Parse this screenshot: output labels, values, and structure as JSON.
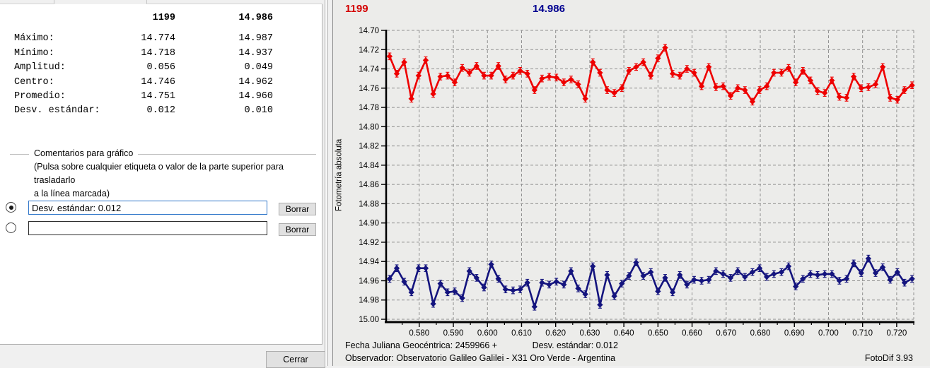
{
  "stats_panel": {
    "header": {
      "col1": "1199",
      "col2": "14.986"
    },
    "rows": [
      {
        "label": "Máximo:",
        "v1": "14.774",
        "v2": "14.987"
      },
      {
        "label": "Mínimo:",
        "v1": "14.718",
        "v2": "14.937"
      },
      {
        "label": "Amplitud:",
        "v1": "0.056",
        "v2": "0.049"
      },
      {
        "label": "Centro:",
        "v1": "14.746",
        "v2": "14.962"
      },
      {
        "label": "Promedio:",
        "v1": "14.751",
        "v2": "14.960"
      },
      {
        "label": "Desv. estándar:",
        "v1": "0.012",
        "v2": "0.010"
      }
    ],
    "comments_group": {
      "title": "Comentarios para gráfico",
      "hint_line1": "(Pulsa sobre cualquier etiqueta o valor de la parte superior para trasladarlo",
      "hint_line2": "a la línea marcada)",
      "row1": {
        "value": "Desv. estándar: 0.012",
        "button": "Borrar",
        "selected": true
      },
      "row2": {
        "value": "",
        "button": "Borrar",
        "selected": false
      }
    },
    "close_button": "Cerrar"
  },
  "chart_data": {
    "type": "line",
    "title_left": "1199",
    "title_center": "14.986",
    "ylabel": "Fotometría absoluta",
    "y_axis_inverted": true,
    "grid": true,
    "grid_color": "#909090",
    "xlim": [
      0.5705,
      0.725
    ],
    "ylim": [
      14.7,
      15.0
    ],
    "x_ticks": [
      0.58,
      0.59,
      0.6,
      0.61,
      0.62,
      0.63,
      0.64,
      0.65,
      0.66,
      0.67,
      0.68,
      0.69,
      0.7,
      0.71,
      0.72
    ],
    "x_tick_labels": [
      "0.580",
      "0.590",
      "0.600",
      "0.610",
      "0.620",
      "0.630",
      "0.640",
      "0.650",
      "0.660",
      "0.670",
      "0.680",
      "0.690",
      "0.700",
      "0.710",
      "0.720"
    ],
    "y_ticks": [
      14.7,
      14.72,
      14.74,
      14.76,
      14.78,
      14.8,
      14.82,
      14.84,
      14.86,
      14.88,
      14.9,
      14.92,
      14.94,
      14.96,
      14.98,
      15.0
    ],
    "y_tick_labels": [
      "14.70",
      "14.72",
      "14.74",
      "14.76",
      "14.78",
      "14.80",
      "14.82",
      "14.84",
      "14.86",
      "14.88",
      "14.90",
      "14.92",
      "14.94",
      "14.96",
      "14.98",
      "15.00"
    ],
    "error_bar": 0.0035,
    "x": [
      0.5713,
      0.5734,
      0.5756,
      0.5777,
      0.5798,
      0.5819,
      0.5841,
      0.5862,
      0.5883,
      0.5904,
      0.5926,
      0.5947,
      0.5968,
      0.599,
      0.6011,
      0.6032,
      0.6053,
      0.6075,
      0.6096,
      0.6117,
      0.6138,
      0.616,
      0.6181,
      0.6202,
      0.6224,
      0.6245,
      0.6266,
      0.6287,
      0.6309,
      0.633,
      0.6351,
      0.6372,
      0.6394,
      0.6415,
      0.6436,
      0.6457,
      0.6479,
      0.65,
      0.6521,
      0.6543,
      0.6564,
      0.6585,
      0.6606,
      0.6628,
      0.6649,
      0.667,
      0.6691,
      0.6713,
      0.6734,
      0.6755,
      0.6777,
      0.6798,
      0.6819,
      0.684,
      0.6862,
      0.6883,
      0.6904,
      0.6925,
      0.6947,
      0.6968,
      0.6989,
      0.701,
      0.7032,
      0.7053,
      0.7074,
      0.7096,
      0.7117,
      0.7138,
      0.7159,
      0.7181,
      0.7202,
      0.7223,
      0.7245
    ],
    "series": [
      {
        "name": "1199",
        "color": "#ee0000",
        "mags": [
          14.727,
          14.745,
          14.733,
          14.771,
          14.747,
          14.731,
          14.766,
          14.748,
          14.747,
          14.754,
          14.739,
          14.744,
          14.737,
          14.747,
          14.747,
          14.737,
          14.751,
          14.747,
          14.742,
          14.745,
          14.762,
          14.75,
          14.748,
          14.749,
          14.754,
          14.751,
          14.756,
          14.771,
          14.733,
          14.744,
          14.762,
          14.765,
          14.76,
          14.742,
          14.738,
          14.733,
          14.747,
          14.729,
          14.718,
          14.745,
          14.747,
          14.74,
          14.744,
          14.758,
          14.738,
          14.759,
          14.758,
          14.768,
          14.76,
          14.762,
          14.774,
          14.762,
          14.758,
          14.744,
          14.744,
          14.739,
          14.754,
          14.742,
          14.752,
          14.763,
          14.765,
          14.752,
          14.769,
          14.77,
          14.748,
          14.76,
          14.759,
          14.756,
          14.738,
          14.77,
          14.772,
          14.762,
          14.757
        ]
      },
      {
        "name": "14.986",
        "color": "#14147e",
        "mags": [
          14.958,
          14.947,
          14.961,
          14.972,
          14.947,
          14.947,
          14.984,
          14.963,
          14.972,
          14.971,
          14.978,
          14.95,
          14.957,
          14.967,
          14.943,
          14.958,
          14.969,
          14.97,
          14.969,
          14.962,
          14.987,
          14.962,
          14.964,
          14.961,
          14.964,
          14.95,
          14.968,
          14.974,
          14.945,
          14.985,
          14.954,
          14.976,
          14.963,
          14.955,
          14.941,
          14.955,
          14.951,
          14.971,
          14.957,
          14.972,
          14.954,
          14.964,
          14.959,
          14.96,
          14.959,
          14.95,
          14.953,
          14.957,
          14.95,
          14.956,
          14.951,
          14.947,
          14.956,
          14.953,
          14.951,
          14.945,
          14.966,
          14.958,
          14.953,
          14.954,
          14.953,
          14.953,
          14.96,
          14.958,
          14.942,
          14.952,
          14.937,
          14.952,
          14.946,
          14.959,
          14.951,
          14.962,
          14.958
        ]
      }
    ],
    "footer": {
      "fecha": "Fecha Juliana Geocéntrica: 2459966 +",
      "desv": "Desv. estándar: 0.012",
      "observador": "Observador: Observatorio Galileo Galilei - X31 Oro Verde - Argentina",
      "version": "FotoDif 3.93"
    }
  }
}
